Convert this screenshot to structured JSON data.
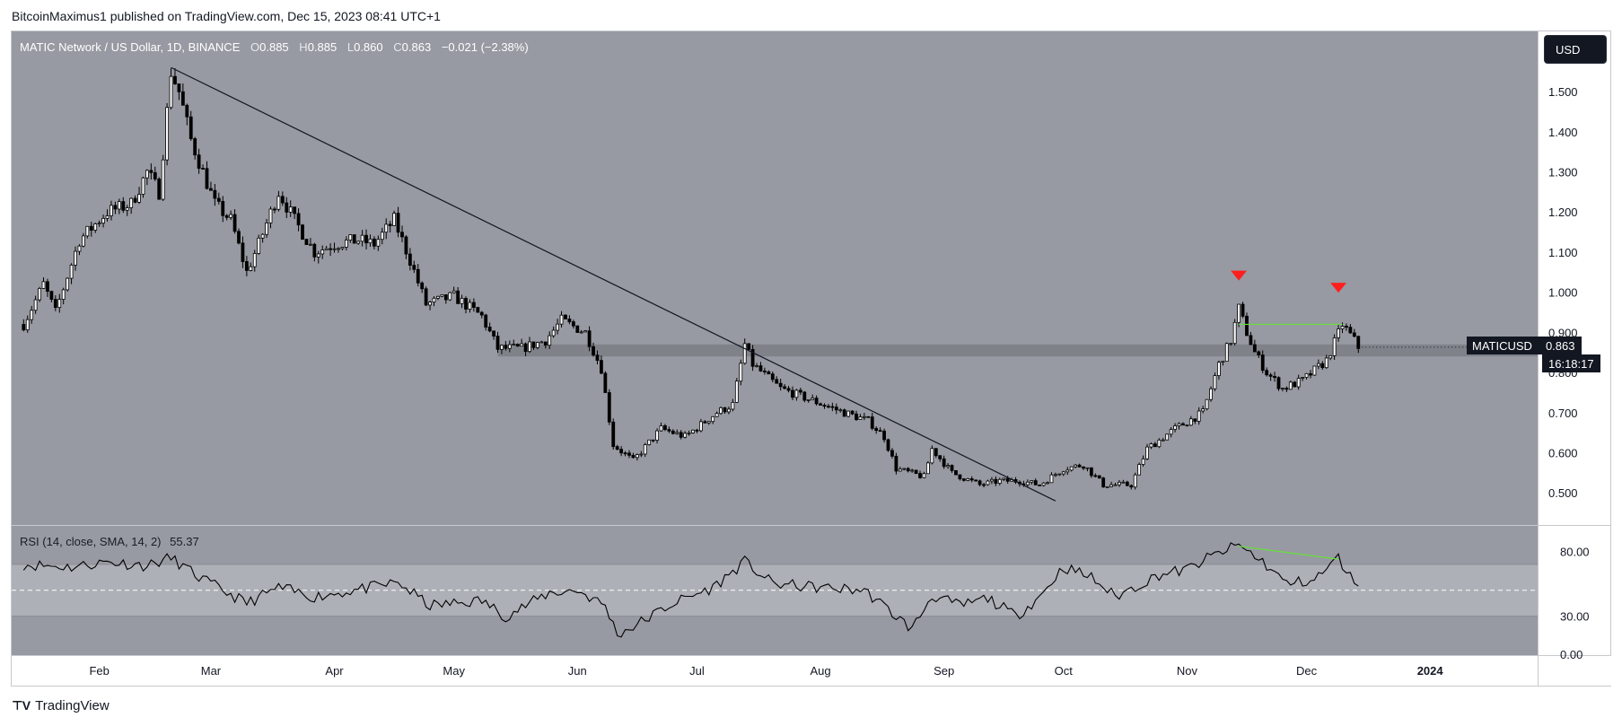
{
  "header": {
    "text": "BitcoinMaximus1 published on TradingView.com, Dec 15, 2023 08:41 UTC+1"
  },
  "legend": {
    "title": "MATIC Network / US Dollar, 1D, BINANCE",
    "o_label": "O",
    "o": "0.885",
    "h_label": "H",
    "h": "0.885",
    "l_label": "L",
    "l": "0.860",
    "c_label": "C",
    "c": "0.863",
    "change": "−0.021 (−2.38%)"
  },
  "rsi_legend": {
    "label": "RSI (14, close, SMA, 14, 2)",
    "value": "55.37"
  },
  "currency": "USD",
  "price_tag": {
    "symbol": "MATICUSD",
    "value": "0.863",
    "countdown": "16:18:17"
  },
  "footer": {
    "brand": "TradingView"
  },
  "colors": {
    "pane_bg": "#979aa2",
    "support_band": "#7f8289",
    "rsi_band": "#adb0b6",
    "trendline": "#131722",
    "green": "#66e03a",
    "red_marker": "#ff1e1e"
  },
  "chart_data": [
    {
      "type": "candlestick",
      "title": "MATIC Network / US Dollar, 1D, BINANCE",
      "ylim": [
        0.42,
        1.65
      ],
      "y_ticks": [
        0.5,
        0.6,
        0.7,
        0.8,
        0.9,
        1.0,
        1.1,
        1.2,
        1.3,
        1.4,
        1.5
      ],
      "y_tick_labels": [
        "0.500",
        "0.600",
        "0.700",
        "0.800",
        "0.900",
        "1.000",
        "1.100",
        "1.200",
        "1.300",
        "1.400",
        "1.500"
      ],
      "x_start": "2023-01-13",
      "x_range": [
        "2023-01-10",
        "2024-01-28"
      ],
      "x_ticks": [
        "2023-02-01",
        "2023-03-01",
        "2023-04-01",
        "2023-05-01",
        "2023-06-01",
        "2023-07-01",
        "2023-08-01",
        "2023-09-01",
        "2023-10-01",
        "2023-11-01",
        "2023-12-01",
        "2024-01-01"
      ],
      "x_tick_labels": [
        "Feb",
        "Mar",
        "Apr",
        "May",
        "Jun",
        "Jul",
        "Aug",
        "Sep",
        "Oct",
        "Nov",
        "Dec",
        "2024"
      ],
      "price_keypoints": [
        [
          "2023-01-13",
          0.92
        ],
        [
          "2023-01-18",
          1.02
        ],
        [
          "2023-01-21",
          0.95
        ],
        [
          "2023-01-27",
          1.13
        ],
        [
          "2023-02-03",
          1.2
        ],
        [
          "2023-02-09",
          1.22
        ],
        [
          "2023-02-13",
          1.3
        ],
        [
          "2023-02-16",
          1.25
        ],
        [
          "2023-02-18",
          1.45
        ],
        [
          "2023-02-19",
          1.55
        ],
        [
          "2023-02-21",
          1.5
        ],
        [
          "2023-02-24",
          1.38
        ],
        [
          "2023-03-02",
          1.22
        ],
        [
          "2023-03-06",
          1.18
        ],
        [
          "2023-03-10",
          1.05
        ],
        [
          "2023-03-13",
          1.12
        ],
        [
          "2023-03-18",
          1.25
        ],
        [
          "2023-03-22",
          1.18
        ],
        [
          "2023-03-27",
          1.1
        ],
        [
          "2023-04-01",
          1.12
        ],
        [
          "2023-04-07",
          1.13
        ],
        [
          "2023-04-11",
          1.12
        ],
        [
          "2023-04-16",
          1.18
        ],
        [
          "2023-04-20",
          1.08
        ],
        [
          "2023-04-24",
          0.97
        ],
        [
          "2023-05-01",
          0.99
        ],
        [
          "2023-05-08",
          0.94
        ],
        [
          "2023-05-12",
          0.86
        ],
        [
          "2023-05-18",
          0.86
        ],
        [
          "2023-05-24",
          0.88
        ],
        [
          "2023-05-28",
          0.93
        ],
        [
          "2023-06-03",
          0.9
        ],
        [
          "2023-06-07",
          0.81
        ],
        [
          "2023-06-10",
          0.62
        ],
        [
          "2023-06-15",
          0.58
        ],
        [
          "2023-06-22",
          0.66
        ],
        [
          "2023-06-28",
          0.64
        ],
        [
          "2023-07-06",
          0.7
        ],
        [
          "2023-07-10",
          0.72
        ],
        [
          "2023-07-13",
          0.87
        ],
        [
          "2023-07-15",
          0.82
        ],
        [
          "2023-07-22",
          0.76
        ],
        [
          "2023-07-30",
          0.73
        ],
        [
          "2023-08-07",
          0.7
        ],
        [
          "2023-08-13",
          0.68
        ],
        [
          "2023-08-17",
          0.64
        ],
        [
          "2023-08-20",
          0.56
        ],
        [
          "2023-08-27",
          0.54
        ],
        [
          "2023-08-29",
          0.61
        ],
        [
          "2023-09-03",
          0.55
        ],
        [
          "2023-09-10",
          0.52
        ],
        [
          "2023-09-15",
          0.53
        ],
        [
          "2023-09-20",
          0.53
        ],
        [
          "2023-09-25",
          0.52
        ],
        [
          "2023-10-01",
          0.56
        ],
        [
          "2023-10-06",
          0.57
        ],
        [
          "2023-10-11",
          0.52
        ],
        [
          "2023-10-18",
          0.52
        ],
        [
          "2023-10-22",
          0.61
        ],
        [
          "2023-10-29",
          0.66
        ],
        [
          "2023-11-05",
          0.7
        ],
        [
          "2023-11-09",
          0.82
        ],
        [
          "2023-11-12",
          0.88
        ],
        [
          "2023-11-14",
          0.96
        ],
        [
          "2023-11-16",
          0.9
        ],
        [
          "2023-11-18",
          0.85
        ],
        [
          "2023-11-21",
          0.8
        ],
        [
          "2023-11-25",
          0.76
        ],
        [
          "2023-11-30",
          0.78
        ],
        [
          "2023-12-06",
          0.83
        ],
        [
          "2023-12-10",
          0.92
        ],
        [
          "2023-12-13",
          0.88
        ],
        [
          "2023-12-14",
          0.863
        ]
      ],
      "support_band": [
        0.84,
        0.87
      ],
      "descending_trendline": [
        [
          "2023-02-19",
          1.56
        ],
        [
          "2023-09-29",
          0.48
        ]
      ],
      "resistance_line": {
        "start": "2023-11-14",
        "end": "2023-12-10",
        "value": 0.92
      },
      "top_markers": [
        [
          "2023-11-14",
          1.0
        ],
        [
          "2023-12-09",
          0.97
        ]
      ]
    },
    {
      "type": "line",
      "title": "RSI (14, close, SMA, 14, 2)",
      "ylim": [
        0,
        100
      ],
      "y_tick_labels": [
        "0.00",
        "30.00",
        "80.00"
      ],
      "y_ticks": [
        0,
        30,
        80
      ],
      "overbought": 70,
      "oversold": 30,
      "midline": 50,
      "rsi_keypoints": [
        [
          "2023-01-13",
          70
        ],
        [
          "2023-01-25",
          68
        ],
        [
          "2023-02-03",
          72
        ],
        [
          "2023-02-13",
          69
        ],
        [
          "2023-02-19",
          75
        ],
        [
          "2023-02-26",
          60
        ],
        [
          "2023-03-10",
          40
        ],
        [
          "2023-03-18",
          52
        ],
        [
          "2023-03-27",
          45
        ],
        [
          "2023-04-10",
          52
        ],
        [
          "2023-04-17",
          56
        ],
        [
          "2023-04-25",
          38
        ],
        [
          "2023-05-08",
          42
        ],
        [
          "2023-05-14",
          30
        ],
        [
          "2023-05-25",
          48
        ],
        [
          "2023-06-01",
          50
        ],
        [
          "2023-06-08",
          38
        ],
        [
          "2023-06-11",
          16
        ],
        [
          "2023-06-15",
          22
        ],
        [
          "2023-06-25",
          40
        ],
        [
          "2023-07-05",
          52
        ],
        [
          "2023-07-13",
          72
        ],
        [
          "2023-07-20",
          55
        ],
        [
          "2023-08-01",
          52
        ],
        [
          "2023-08-12",
          50
        ],
        [
          "2023-08-18",
          35
        ],
        [
          "2023-08-24",
          20
        ],
        [
          "2023-08-29",
          46
        ],
        [
          "2023-09-05",
          38
        ],
        [
          "2023-09-12",
          44
        ],
        [
          "2023-09-19",
          30
        ],
        [
          "2023-09-25",
          45
        ],
        [
          "2023-10-01",
          68
        ],
        [
          "2023-10-08",
          60
        ],
        [
          "2023-10-14",
          45
        ],
        [
          "2023-10-25",
          62
        ],
        [
          "2023-11-01",
          66
        ],
        [
          "2023-11-07",
          76
        ],
        [
          "2023-11-14",
          85
        ],
        [
          "2023-11-20",
          72
        ],
        [
          "2023-11-26",
          55
        ],
        [
          "2023-12-03",
          58
        ],
        [
          "2023-12-09",
          75
        ],
        [
          "2023-12-12",
          60
        ],
        [
          "2023-12-14",
          55.37
        ]
      ],
      "divergence_line": [
        [
          "2023-11-14",
          84
        ],
        [
          "2023-12-09",
          74
        ]
      ]
    }
  ]
}
